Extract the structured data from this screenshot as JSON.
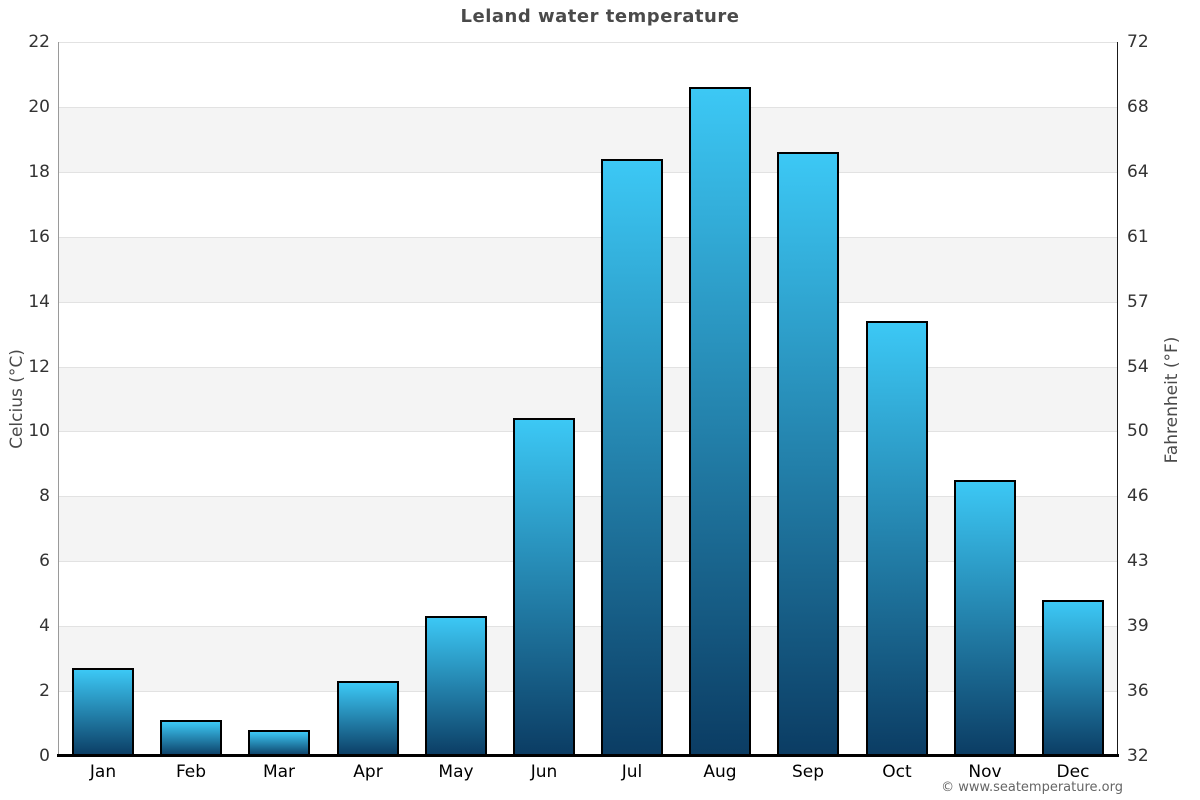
{
  "page": {
    "title": "Leland water temperature",
    "footer": "© www.seatemperature.org"
  },
  "chart_data": {
    "type": "bar",
    "title": "Leland water temperature",
    "categories": [
      "Jan",
      "Feb",
      "Mar",
      "Apr",
      "May",
      "Jun",
      "Jul",
      "Aug",
      "Sep",
      "Oct",
      "Nov",
      "Dec"
    ],
    "values": [
      2.7,
      1.1,
      0.8,
      2.3,
      4.3,
      10.4,
      18.4,
      20.6,
      18.6,
      13.4,
      8.5,
      4.8
    ],
    "value_unit": "°C",
    "axes": {
      "left": {
        "label": "Celcius (°C)",
        "ticks": [
          22,
          20,
          18,
          16,
          14,
          12,
          10,
          8,
          6,
          4,
          2,
          0
        ],
        "range": [
          0,
          22
        ]
      },
      "right": {
        "label": "Fahrenheit (°F)",
        "tick_labels": [
          "72",
          "68",
          "64",
          "61",
          "57",
          "54",
          "50",
          "46",
          "43",
          "39",
          "36",
          "32"
        ]
      }
    },
    "grid": {
      "alternating_bands": true,
      "band_step": 2
    },
    "legend_position": "none"
  },
  "colors": {
    "bar_gradient_top": "#3cc8f5",
    "bar_gradient_bottom": "#0b3c63",
    "bar_border": "#000000",
    "band_fill": "#f4f4f4",
    "gridline": "#e2e2e2",
    "title_text": "#4a4a4a",
    "tick_text": "#333333",
    "axis_title_text": "#4a4a4a",
    "footer_text": "#666666"
  }
}
